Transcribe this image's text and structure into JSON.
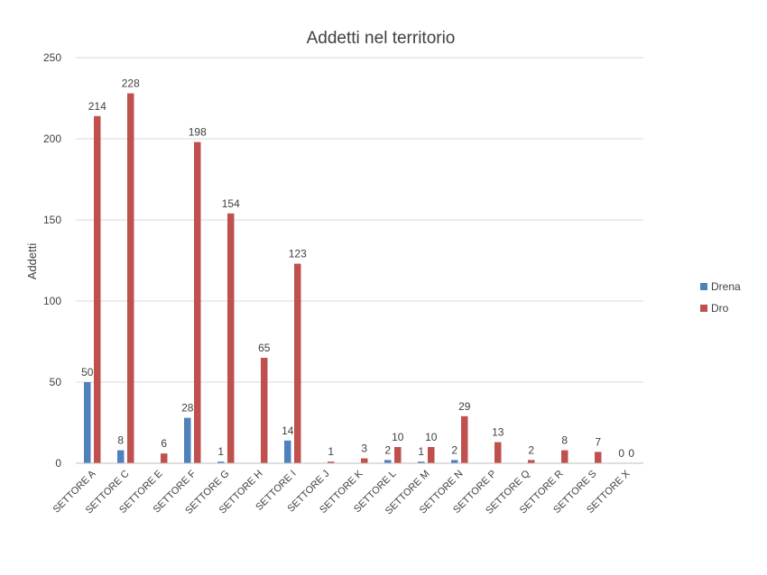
{
  "chart_data": {
    "type": "bar",
    "title": "Addetti nel territorio",
    "ylabel": "Addetti",
    "xlabel": "",
    "ylim": [
      0,
      250
    ],
    "yticks": [
      0,
      50,
      100,
      150,
      200,
      250
    ],
    "grid": true,
    "legend_position": "right",
    "categories": [
      "SETTORE A",
      "SETTORE C",
      "SETTORE E",
      "SETTORE F",
      "SETTORE G",
      "SETTORE H",
      "SETTORE I",
      "SETTORE J",
      "SETTORE K",
      "SETTORE L",
      "SETTORE M",
      "SETTORE N",
      "SETTORE P",
      "SETTORE Q",
      "SETTORE R",
      "SETTORE S",
      "SETTORE X"
    ],
    "series": [
      {
        "name": "Drena",
        "color": "#4f81bd",
        "values": [
          50,
          8,
          null,
          28,
          1,
          null,
          14,
          null,
          null,
          2,
          1,
          2,
          null,
          null,
          null,
          null,
          0
        ]
      },
      {
        "name": "Dro",
        "color": "#c0504d",
        "values": [
          214,
          228,
          6,
          198,
          154,
          65,
          123,
          1,
          3,
          10,
          10,
          29,
          13,
          2,
          8,
          7,
          0
        ]
      }
    ]
  }
}
